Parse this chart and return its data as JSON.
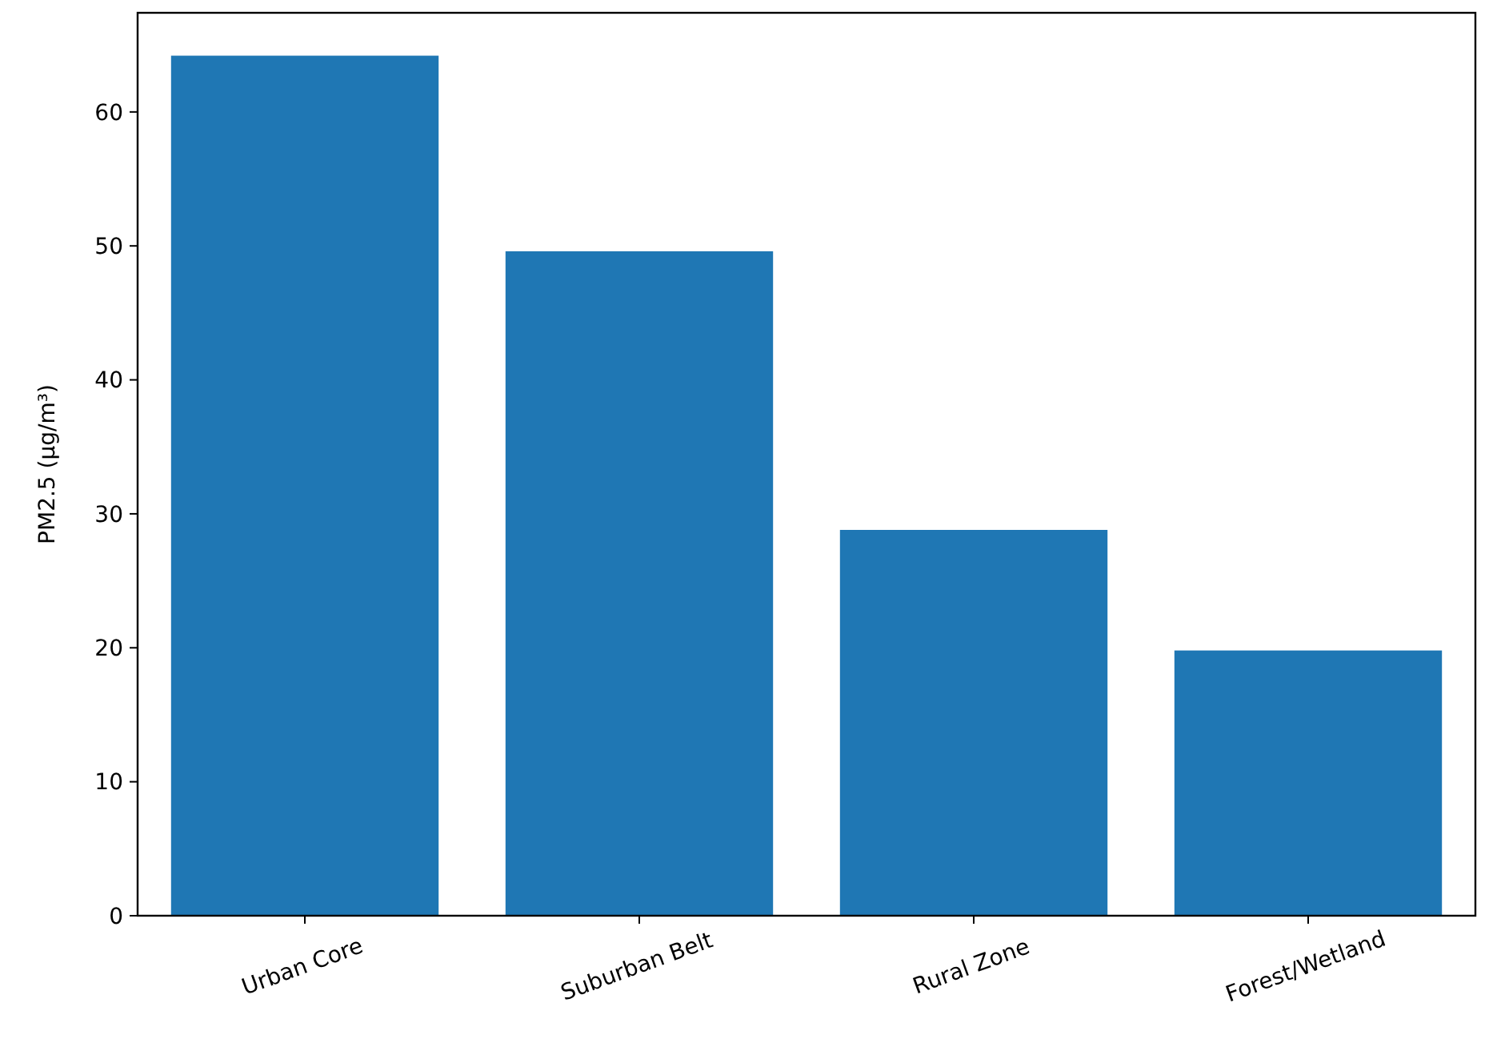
{
  "chart_data": {
    "type": "bar",
    "ylabel": "PM2.5 (µg/m³)",
    "categories": [
      "Urban Core",
      "Suburban Belt",
      "Rural Zone",
      "Forest/Wetland"
    ],
    "values": [
      64.2,
      49.6,
      28.8,
      19.8
    ],
    "color": "#1f77b4",
    "ylim": [
      0,
      67.4
    ],
    "yticks": [
      0,
      10,
      20,
      30,
      40,
      50,
      60
    ],
    "grid": false
  }
}
